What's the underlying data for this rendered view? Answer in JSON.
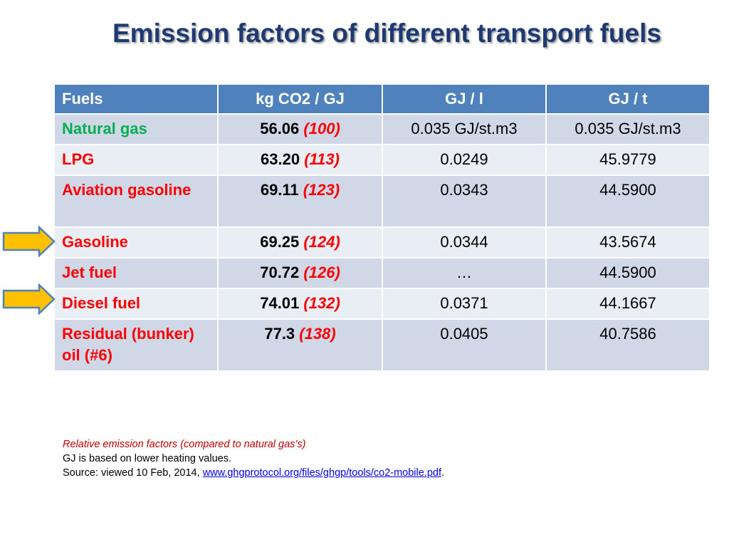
{
  "title": "Emission factors of different transport fuels",
  "table": {
    "headers": [
      "Fuels",
      "kg CO2 / GJ",
      "GJ / l",
      "GJ / t"
    ],
    "rows": [
      {
        "fuel": "Natural gas",
        "factor": "56.06",
        "relative": "(100)",
        "gj_per_l": "0.035 GJ/st.m3",
        "gj_per_t": "0.035 GJ/st.m3"
      },
      {
        "fuel": "LPG",
        "factor": "63.20",
        "relative": "(113)",
        "gj_per_l": "0.0249",
        "gj_per_t": "45.9779"
      },
      {
        "fuel": "Aviation gasoline",
        "factor": "69.11",
        "relative": "(123)",
        "gj_per_l": "0.0343",
        "gj_per_t": "44.5900"
      },
      {
        "fuel": "Gasoline",
        "factor": "69.25",
        "relative": "(124)",
        "gj_per_l": "0.0344",
        "gj_per_t": "43.5674"
      },
      {
        "fuel": "Jet fuel",
        "factor": "70.72",
        "relative": "(126)",
        "gj_per_l": "…",
        "gj_per_t": "44.5900"
      },
      {
        "fuel": "Diesel fuel",
        "factor": "74.01",
        "relative": "(132)",
        "gj_per_l": "0.0371",
        "gj_per_t": "44.1667"
      },
      {
        "fuel": "Residual (bunker) oil (#6)",
        "factor": "77.3",
        "relative": "(138)",
        "gj_per_l": "0.0405",
        "gj_per_t": "40.7586"
      }
    ]
  },
  "notes": {
    "relative_note": "Relative emission factors (compared to natural gas’s)",
    "heating_note": "GJ is based on lower heating values.",
    "source_prefix": "Source: viewed 10 Feb, 2014, ",
    "source_link": "www.ghgprotocol.org/files/ghgp/tools/co2-mobile.pdf",
    "source_suffix": "."
  },
  "icons": {
    "arrows": [
      "arrow-right-icon",
      "arrow-right-icon"
    ]
  },
  "colors": {
    "header_bg": "#4f81bd",
    "row_odd": "#d0d8e8",
    "row_even": "#e9edf4",
    "fuel_red": "#ff0000",
    "fuel_green": "#00b050",
    "arrow_fill": "#ffc000",
    "arrow_stroke": "#4f81bd",
    "title": "#1f3a73"
  }
}
